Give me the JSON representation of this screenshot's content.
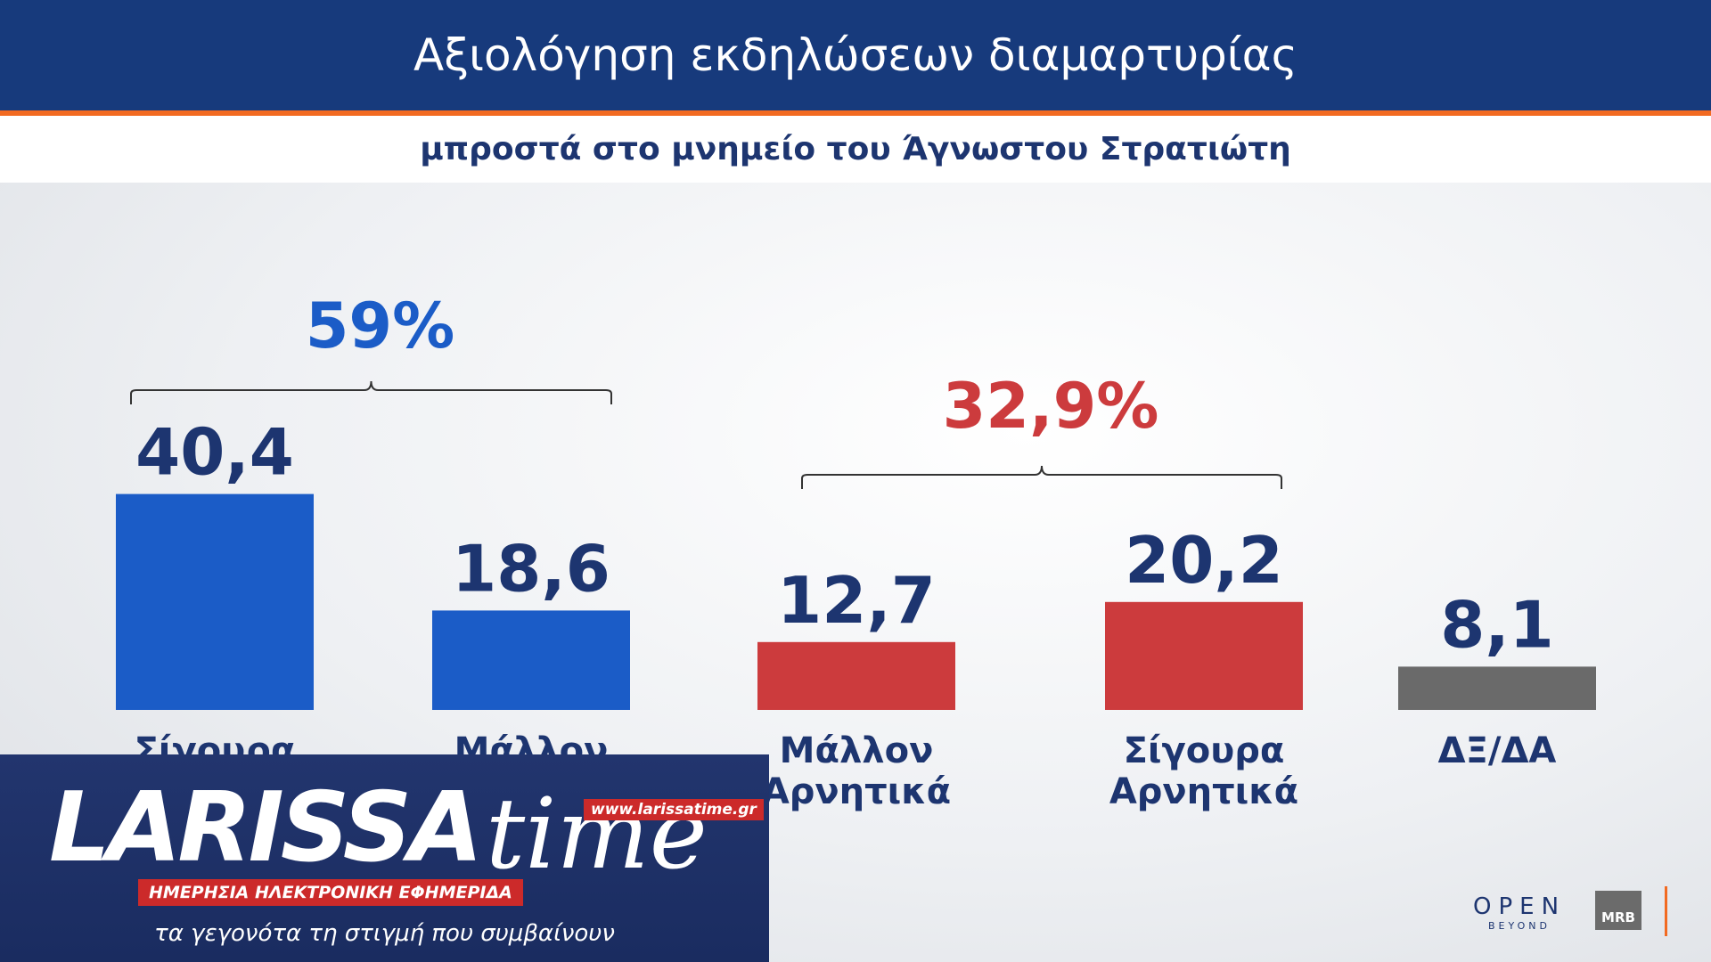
{
  "header": {
    "title": "Αξιολόγηση εκδηλώσεων διαμαρτυρίας",
    "subtitle": "μπροστά στο μνημείο του Άγνωστου Στρατιώτη"
  },
  "chart_data": {
    "type": "bar",
    "categories": [
      "Σίγουρα",
      "Μάλλον",
      "Μάλλον\nΑρνητικά",
      "Σίγουρα\nΑρνητικά",
      "ΔΞ/ΔΑ"
    ],
    "values": [
      40.4,
      18.6,
      12.7,
      20.2,
      8.1
    ],
    "value_labels": [
      "40,4",
      "18,6",
      "12,7",
      "20,2",
      "8,1"
    ],
    "colors": [
      "#1b5cc7",
      "#1b5cc7",
      "#cc3b3d",
      "#cc3b3d",
      "#6a6a6a"
    ],
    "groups": [
      {
        "label": "59%",
        "color": "#1b5cc7"
      },
      {
        "label": "32,9%",
        "color": "#cc3b3d"
      }
    ]
  },
  "overlay": {
    "logo_main": "LARISSA",
    "logo_script": "time",
    "url": "www.larissatime.gr",
    "tagline": "ΗΜΕΡΗΣΙΑ ΗΛΕΚΤΡΟΝΙΚΗ ΕΦΗΜΕΡΙΔΑ",
    "slogan": "τα γεγονότα τη στιγμή που συμβαίνουν"
  },
  "branding": {
    "open": "OPEN",
    "beyond": "BEYOND",
    "mrb": "MRB"
  }
}
